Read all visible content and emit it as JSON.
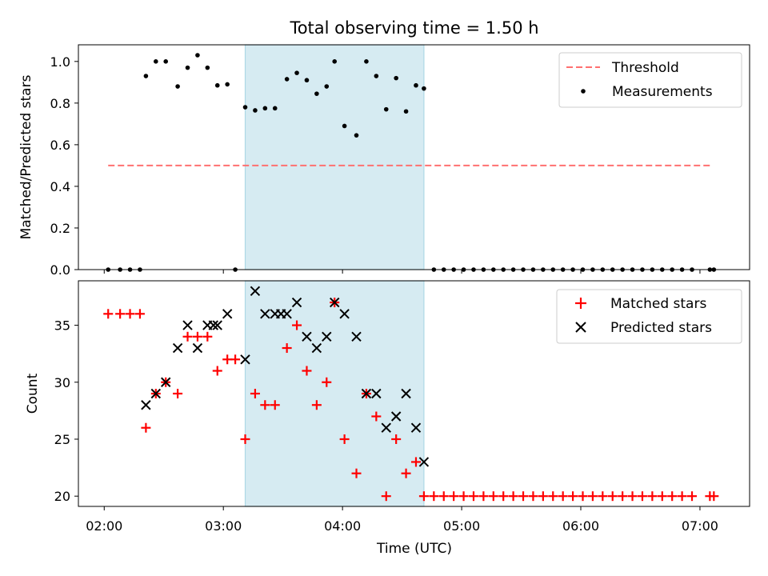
{
  "chart_data": [
    {
      "type": "scatter",
      "title": "Total observing time = 1.50 h",
      "xlabel": "",
      "ylabel": "Matched/Predicted stars",
      "xlim": [
        "01:47",
        "07:25"
      ],
      "ylim": [
        0,
        1.08
      ],
      "yticks": [
        "0.0",
        "0.2",
        "0.4",
        "0.6",
        "0.8",
        "1.0"
      ],
      "grid": false,
      "legend_position": "top-right",
      "shaded_interval": {
        "start": "03:11",
        "end": "04:41",
        "color": "#add8e6"
      },
      "series": [
        {
          "name": "Threshold",
          "kind": "dashed-line",
          "color": "#ff7070",
          "points": [
            [
              "02:02",
              0.5
            ],
            [
              "07:06",
              0.5
            ]
          ]
        },
        {
          "name": "Measurements",
          "kind": "dots",
          "color": "#000000",
          "points": [
            [
              "02:02",
              0.0
            ],
            [
              "02:08",
              0.0
            ],
            [
              "02:13",
              0.0
            ],
            [
              "02:18",
              0.0
            ],
            [
              "02:21",
              0.93
            ],
            [
              "02:26",
              1.0
            ],
            [
              "02:31",
              1.0
            ],
            [
              "02:37",
              0.88
            ],
            [
              "02:42",
              0.97
            ],
            [
              "02:47",
              1.03
            ],
            [
              "02:52",
              0.97
            ],
            [
              "02:57",
              0.885
            ],
            [
              "03:02",
              0.89
            ],
            [
              "03:06",
              0.0
            ],
            [
              "03:11",
              0.78
            ],
            [
              "03:16",
              0.765
            ],
            [
              "03:21",
              0.775
            ],
            [
              "03:26",
              0.775
            ],
            [
              "03:32",
              0.915
            ],
            [
              "03:37",
              0.945
            ],
            [
              "03:42",
              0.91
            ],
            [
              "03:47",
              0.845
            ],
            [
              "03:52",
              0.88
            ],
            [
              "03:56",
              1.0
            ],
            [
              "04:01",
              0.69
            ],
            [
              "04:07",
              0.645
            ],
            [
              "04:12",
              1.0
            ],
            [
              "04:17",
              0.93
            ],
            [
              "04:22",
              0.77
            ],
            [
              "04:27",
              0.92
            ],
            [
              "04:32",
              0.76
            ],
            [
              "04:37",
              0.885
            ],
            [
              "04:41",
              0.87
            ],
            [
              "04:46",
              0.0
            ],
            [
              "04:51",
              0.0
            ],
            [
              "04:56",
              0.0
            ],
            [
              "05:01",
              0.0
            ],
            [
              "05:06",
              0.0
            ],
            [
              "05:11",
              0.0
            ],
            [
              "05:16",
              0.0
            ],
            [
              "05:21",
              0.0
            ],
            [
              "05:26",
              0.0
            ],
            [
              "05:31",
              0.0
            ],
            [
              "05:36",
              0.0
            ],
            [
              "05:41",
              0.0
            ],
            [
              "05:46",
              0.0
            ],
            [
              "05:51",
              0.0
            ],
            [
              "05:56",
              0.0
            ],
            [
              "06:01",
              0.0
            ],
            [
              "06:06",
              0.0
            ],
            [
              "06:11",
              0.0
            ],
            [
              "06:16",
              0.0
            ],
            [
              "06:21",
              0.0
            ],
            [
              "06:26",
              0.0
            ],
            [
              "06:31",
              0.0
            ],
            [
              "06:36",
              0.0
            ],
            [
              "06:41",
              0.0
            ],
            [
              "06:46",
              0.0
            ],
            [
              "06:51",
              0.0
            ],
            [
              "06:56",
              0.0
            ],
            [
              "07:05",
              0.0
            ],
            [
              "07:07",
              0.0
            ]
          ]
        }
      ]
    },
    {
      "type": "scatter",
      "title": "",
      "xlabel": "Time (UTC)",
      "ylabel": "Count",
      "xlim": [
        "01:47",
        "07:25"
      ],
      "ylim": [
        19.1,
        38.9
      ],
      "xticks": [
        "02:00",
        "03:00",
        "04:00",
        "05:00",
        "06:00",
        "07:00"
      ],
      "yticks": [
        "20",
        "25",
        "30",
        "35"
      ],
      "grid": false,
      "legend_position": "top-right",
      "shaded_interval": {
        "start": "03:11",
        "end": "04:41",
        "color": "#add8e6"
      },
      "series": [
        {
          "name": "Matched stars",
          "kind": "plus",
          "color": "#ff0000",
          "points": [
            [
              "02:02",
              36
            ],
            [
              "02:08",
              36
            ],
            [
              "02:13",
              36
            ],
            [
              "02:18",
              36
            ],
            [
              "02:21",
              26
            ],
            [
              "02:26",
              29
            ],
            [
              "02:31",
              30
            ],
            [
              "02:37",
              29
            ],
            [
              "02:42",
              34
            ],
            [
              "02:47",
              34
            ],
            [
              "02:52",
              34
            ],
            [
              "02:57",
              31
            ],
            [
              "03:02",
              32
            ],
            [
              "03:06",
              32
            ],
            [
              "03:11",
              25
            ],
            [
              "03:16",
              29
            ],
            [
              "03:21",
              28
            ],
            [
              "03:26",
              28
            ],
            [
              "03:32",
              33
            ],
            [
              "03:37",
              35
            ],
            [
              "03:42",
              31
            ],
            [
              "03:47",
              28
            ],
            [
              "03:52",
              30
            ],
            [
              "03:56",
              37
            ],
            [
              "04:01",
              25
            ],
            [
              "04:07",
              22
            ],
            [
              "04:12",
              29
            ],
            [
              "04:17",
              27
            ],
            [
              "04:22",
              20
            ],
            [
              "04:27",
              25
            ],
            [
              "04:32",
              22
            ],
            [
              "04:37",
              23
            ],
            [
              "04:41",
              20
            ],
            [
              "04:46",
              20
            ],
            [
              "04:51",
              20
            ],
            [
              "04:56",
              20
            ],
            [
              "05:01",
              20
            ],
            [
              "05:06",
              20
            ],
            [
              "05:11",
              20
            ],
            [
              "05:16",
              20
            ],
            [
              "05:21",
              20
            ],
            [
              "05:26",
              20
            ],
            [
              "05:31",
              20
            ],
            [
              "05:36",
              20
            ],
            [
              "05:41",
              20
            ],
            [
              "05:46",
              20
            ],
            [
              "05:51",
              20
            ],
            [
              "05:56",
              20
            ],
            [
              "06:01",
              20
            ],
            [
              "06:06",
              20
            ],
            [
              "06:11",
              20
            ],
            [
              "06:16",
              20
            ],
            [
              "06:21",
              20
            ],
            [
              "06:26",
              20
            ],
            [
              "06:31",
              20
            ],
            [
              "06:36",
              20
            ],
            [
              "06:41",
              20
            ],
            [
              "06:46",
              20
            ],
            [
              "06:51",
              20
            ],
            [
              "06:56",
              20
            ],
            [
              "07:05",
              20
            ],
            [
              "07:07",
              20
            ]
          ]
        },
        {
          "name": "Predicted stars",
          "kind": "x",
          "color": "#000000",
          "points": [
            [
              "02:21",
              28
            ],
            [
              "02:26",
              29
            ],
            [
              "02:31",
              30
            ],
            [
              "02:37",
              33
            ],
            [
              "02:42",
              35
            ],
            [
              "02:47",
              33
            ],
            [
              "02:52",
              35
            ],
            [
              "02:55",
              35
            ],
            [
              "02:57",
              35
            ],
            [
              "03:02",
              36
            ],
            [
              "03:11",
              32
            ],
            [
              "03:16",
              38
            ],
            [
              "03:21",
              36
            ],
            [
              "03:26",
              36
            ],
            [
              "03:29",
              36
            ],
            [
              "03:32",
              36
            ],
            [
              "03:37",
              37
            ],
            [
              "03:42",
              34
            ],
            [
              "03:47",
              33
            ],
            [
              "03:52",
              34
            ],
            [
              "03:56",
              37
            ],
            [
              "04:01",
              36
            ],
            [
              "04:07",
              34
            ],
            [
              "04:12",
              29
            ],
            [
              "04:17",
              29
            ],
            [
              "04:22",
              26
            ],
            [
              "04:27",
              27
            ],
            [
              "04:32",
              29
            ],
            [
              "04:37",
              26
            ],
            [
              "04:41",
              23
            ]
          ]
        }
      ]
    }
  ]
}
